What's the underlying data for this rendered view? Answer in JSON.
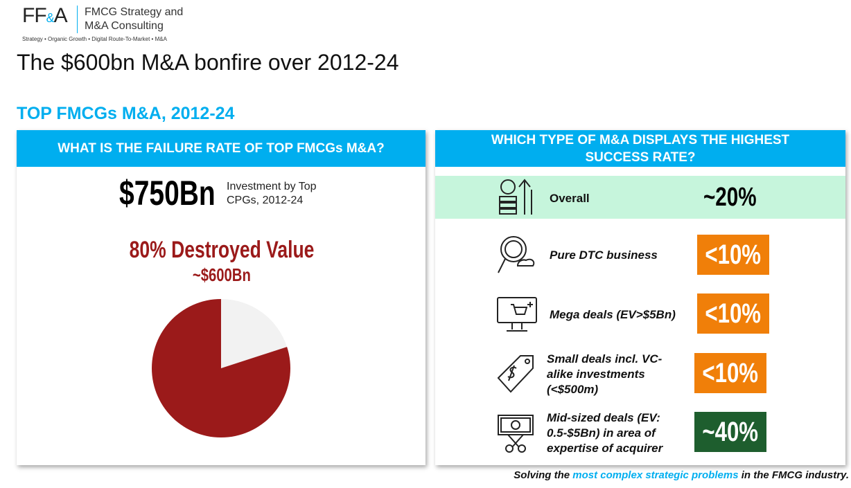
{
  "logo": {
    "letters": "FF",
    "amp": "&",
    "letter2": "A",
    "name_line1": "FMCG Strategy and",
    "name_line2": "M&A Consulting",
    "tagline": "Strategy • Organic Growth • Digital Route-To-Market • M&A"
  },
  "title": "The $600bn M&A bonfire over 2012-24",
  "section_title": "TOP FMCGs M&A, 2012-24",
  "left_panel": {
    "header": "WHAT IS THE FAILURE RATE OF TOP FMCGs M&A?",
    "investment": "$750Bn",
    "investment_note": "Investment by Top CPGs, 2012-24",
    "headline": "80% Destroyed Value",
    "headline_sub": "~$600Bn"
  },
  "chart_data": {
    "type": "pie",
    "values": [
      20,
      80
    ],
    "colors": [
      "#f2f2f2",
      "#9b1a1a"
    ]
  },
  "right_panel": {
    "header": "WHICH TYPE OF M&A DISPLAYS THE HIGHEST SUCCESS RATE?",
    "rows": [
      {
        "label": "Overall",
        "rate": "~20%"
      },
      {
        "label": "Pure DTC business",
        "rate": "<10%"
      },
      {
        "label": "Mega deals (EV>$5Bn)",
        "rate": "<10%"
      },
      {
        "label": "Small deals incl. VC-alike investments (<$500m)",
        "rate": "<10%"
      },
      {
        "label": "Mid-sized deals (EV: 0.5-$5Bn) in area of expertise of acquirer",
        "rate": "~40%"
      }
    ]
  },
  "footer": {
    "before": "Solving the ",
    "highlight": "most complex strategic problems",
    "after": " in the FMCG industry."
  }
}
